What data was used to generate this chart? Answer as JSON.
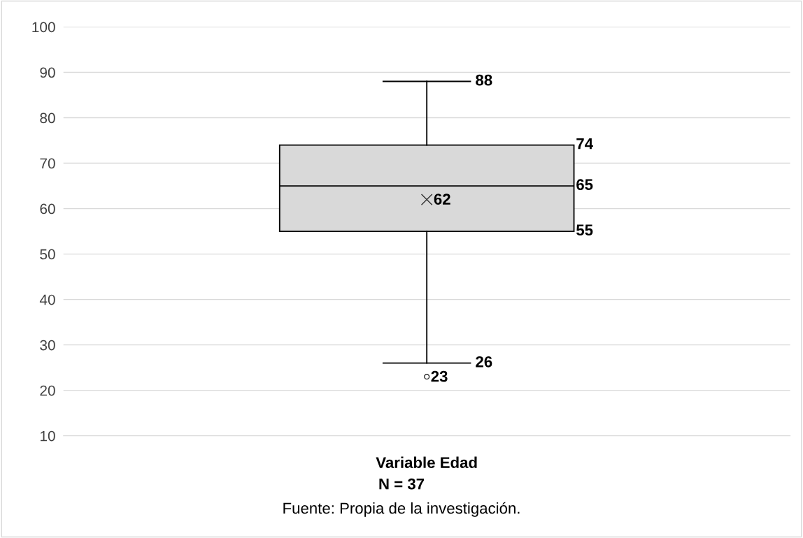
{
  "chart_data": {
    "type": "box",
    "categories": [
      null
    ],
    "xlabel": "Variable Edad",
    "boxes": [
      {
        "low": 26,
        "q1": 55,
        "median": 65,
        "q3": 74,
        "high": 88,
        "mean": 62,
        "outliers": [
          23
        ]
      }
    ],
    "color": "#d9d9d9",
    "ylim": [
      10,
      100
    ],
    "yticks": [
      10,
      20,
      30,
      40,
      50,
      60,
      70,
      80,
      90,
      100
    ],
    "grid": "y",
    "data_labels": true,
    "annotations": [
      "88",
      "74",
      "65",
      "62",
      "55",
      "26",
      "23",
      "N = 37",
      "Fuente: Propia de la investigación."
    ]
  }
}
